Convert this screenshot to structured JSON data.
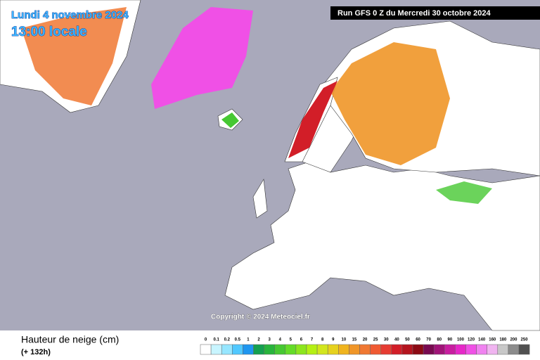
{
  "header": {
    "date": "Lundi 4 novembre 2024",
    "time": "13:00 locale",
    "run": "Run GFS 0 Z du Mercredi 30 octobre 2024"
  },
  "copyright": "Copyright © 2024 Meteociel.fr",
  "footer": {
    "title": "Hauteur de neige (cm)",
    "lead": "(+ 132h)"
  },
  "legend": [
    {
      "label": "0",
      "color": "#ffffff"
    },
    {
      "label": "0.1",
      "color": "#c8f5ff"
    },
    {
      "label": "0.2",
      "color": "#96e6ff"
    },
    {
      "label": "0.5",
      "color": "#50c8ff"
    },
    {
      "label": "1",
      "color": "#1e96f0"
    },
    {
      "label": "2",
      "color": "#14a050"
    },
    {
      "label": "3",
      "color": "#28b43c"
    },
    {
      "label": "4",
      "color": "#46c832"
    },
    {
      "label": "5",
      "color": "#64dc28"
    },
    {
      "label": "6",
      "color": "#8ce61e"
    },
    {
      "label": "7",
      "color": "#b4f014"
    },
    {
      "label": "8",
      "color": "#d2e61e"
    },
    {
      "label": "9",
      "color": "#e6d21e"
    },
    {
      "label": "10",
      "color": "#f0b41e"
    },
    {
      "label": "15",
      "color": "#f09628"
    },
    {
      "label": "20",
      "color": "#f07832"
    },
    {
      "label": "25",
      "color": "#f05a32"
    },
    {
      "label": "30",
      "color": "#e63c32"
    },
    {
      "label": "40",
      "color": "#d21e28"
    },
    {
      "label": "50",
      "color": "#b4141e"
    },
    {
      "label": "60",
      "color": "#8c0a14"
    },
    {
      "label": "70",
      "color": "#780a50"
    },
    {
      "label": "80",
      "color": "#a01478"
    },
    {
      "label": "90",
      "color": "#c81ea0"
    },
    {
      "label": "100",
      "color": "#e628c8"
    },
    {
      "label": "120",
      "color": "#f050e6"
    },
    {
      "label": "140",
      "color": "#f082f0"
    },
    {
      "label": "160",
      "color": "#f0b4f0"
    },
    {
      "label": "180",
      "color": "#c8c8c8"
    },
    {
      "label": "200",
      "color": "#8c8c8c"
    },
    {
      "label": "250",
      "color": "#505050"
    }
  ]
}
